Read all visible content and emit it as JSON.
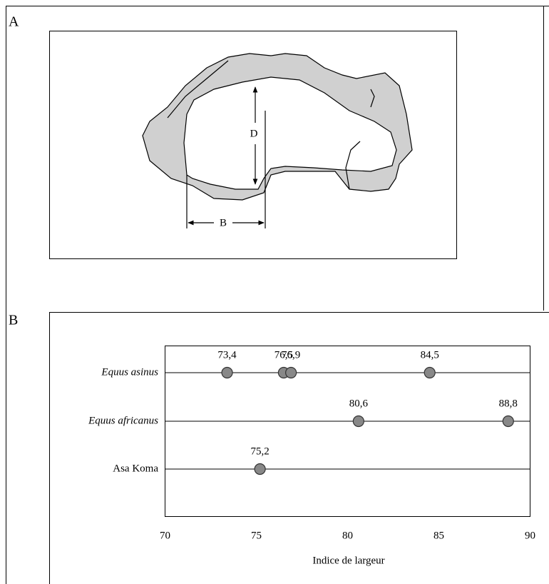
{
  "panels": {
    "a": "A",
    "b": "B"
  },
  "diagram": {
    "labels": {
      "d": "D",
      "b": "B"
    }
  },
  "chart_data": {
    "type": "dot",
    "xlabel": "Indice de largeur",
    "xlim": [
      70,
      90
    ],
    "xticks": [
      70,
      75,
      80,
      85,
      90
    ],
    "color": "#888888",
    "series": [
      {
        "name": "Equus asinus",
        "values": [
          73.4,
          76.5,
          76.9,
          84.5
        ],
        "value_labels": [
          "73,4",
          "76,5",
          "76,9",
          "84,5"
        ]
      },
      {
        "name": "Equus africanus",
        "values": [
          80.6,
          88.8
        ],
        "value_labels": [
          "80,6",
          "88,8"
        ]
      },
      {
        "name": "Asa Koma",
        "values": [
          75.2
        ],
        "value_labels": [
          "75,2"
        ]
      }
    ]
  }
}
